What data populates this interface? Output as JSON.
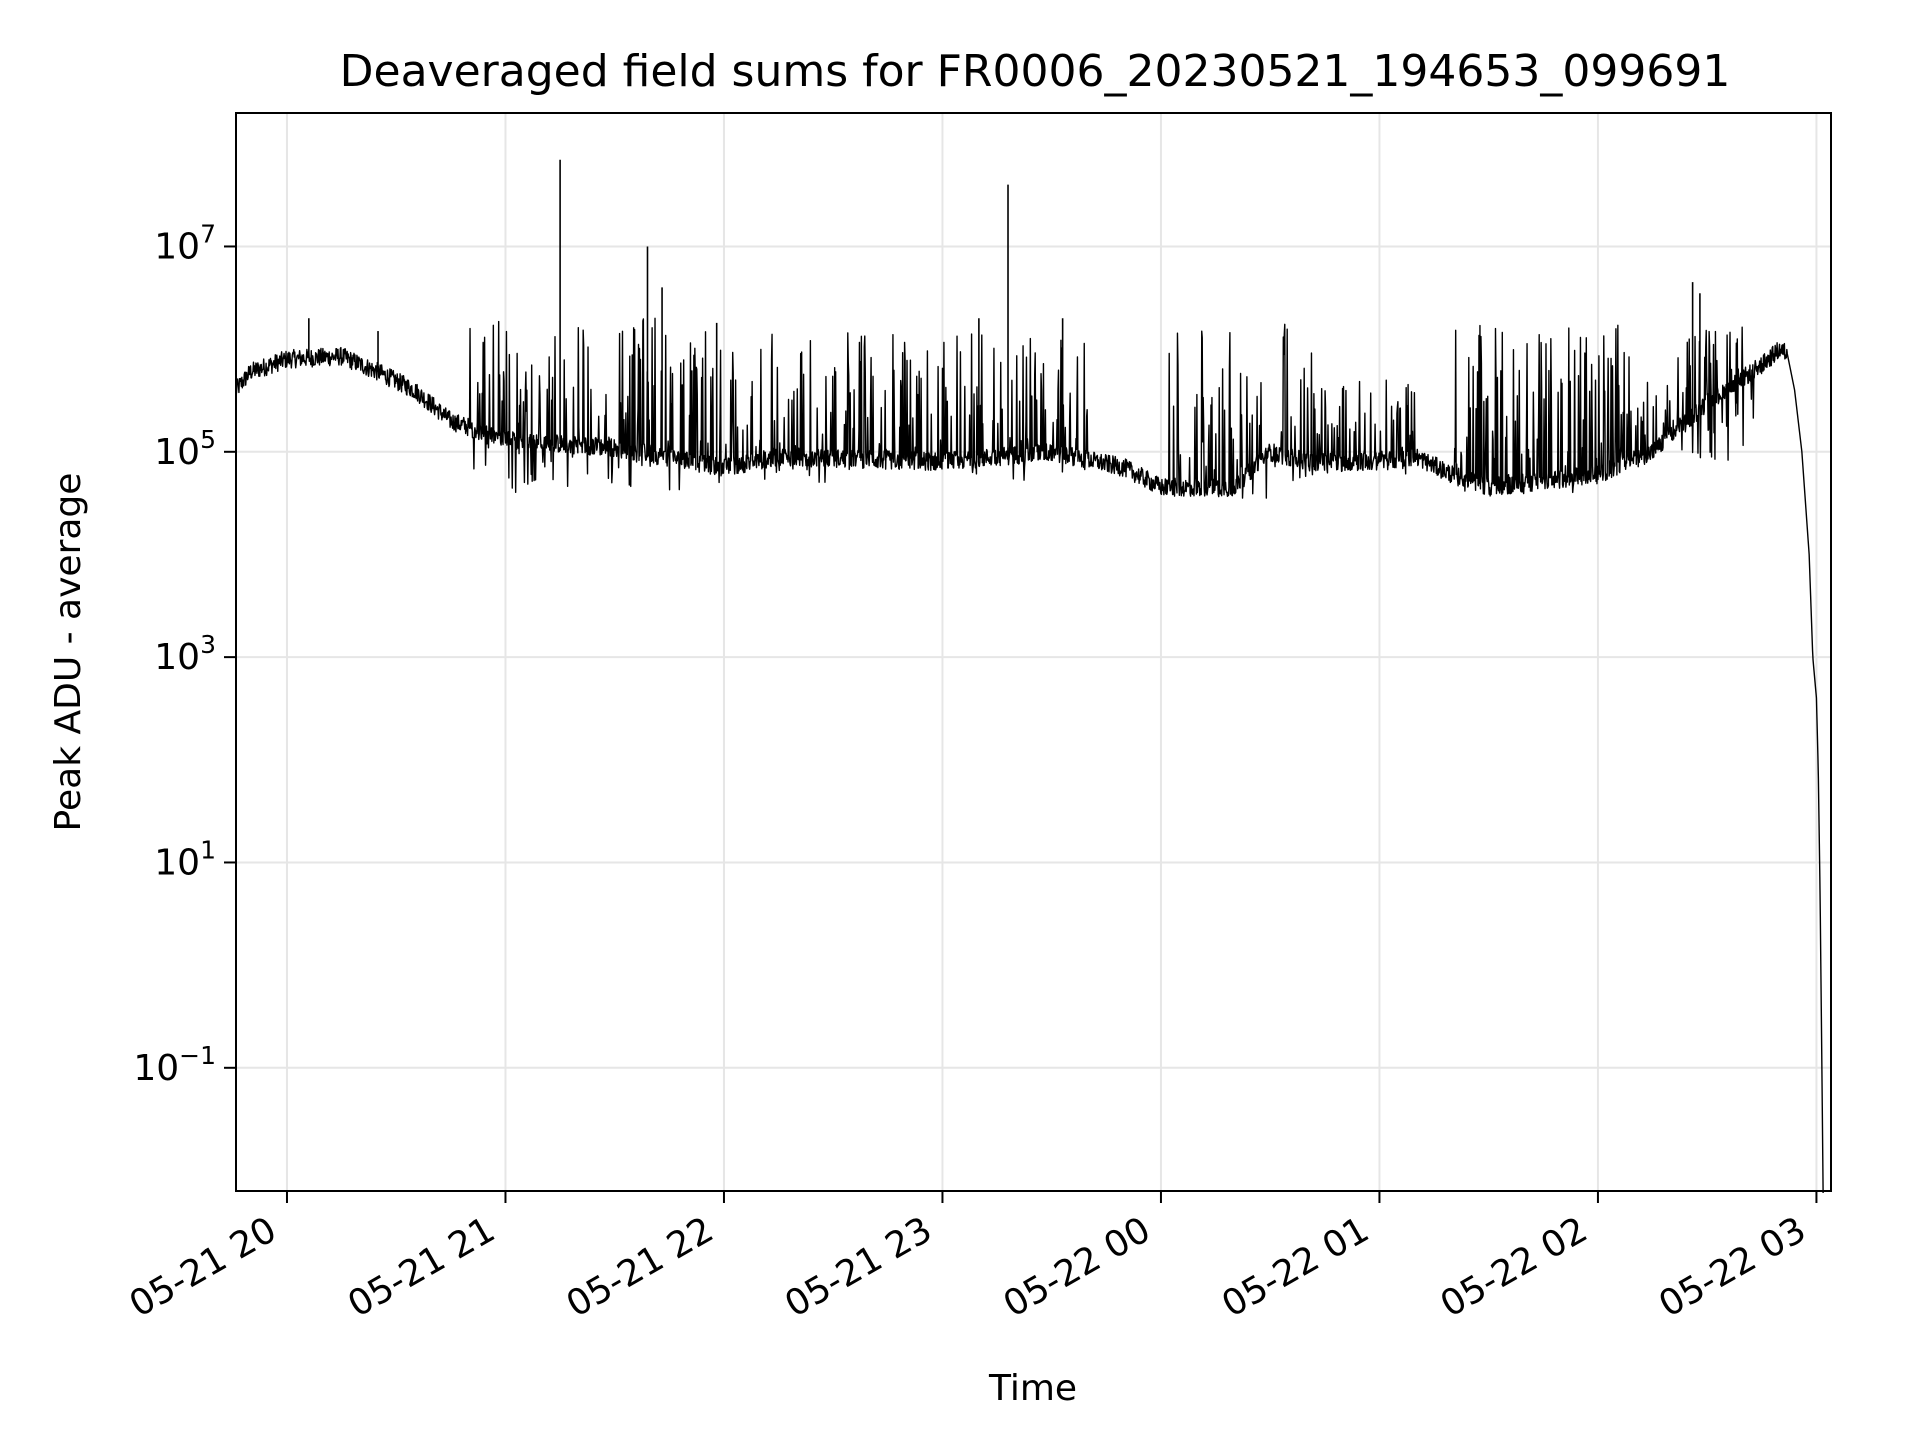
{
  "chart_data": {
    "type": "line",
    "title": "Deaveraged field sums for FR0006_20230521_194653_099691",
    "xlabel": "Time",
    "ylabel": "Peak ADU - average",
    "yscale": "log",
    "grid": true,
    "line_color": "#000000",
    "grid_color": "#e6e6e6",
    "xlim": [
      "2023-05-21 19:46",
      "2023-05-22 03:04"
    ],
    "ylim_exp": [
      -2.2,
      8.3
    ],
    "x_ticks": [
      {
        "t": "2023-05-21 20:00",
        "label": "05-21 20"
      },
      {
        "t": "2023-05-21 21:00",
        "label": "05-21 21"
      },
      {
        "t": "2023-05-21 22:00",
        "label": "05-21 22"
      },
      {
        "t": "2023-05-21 23:00",
        "label": "05-21 23"
      },
      {
        "t": "2023-05-22 00:00",
        "label": "05-22 00"
      },
      {
        "t": "2023-05-22 01:00",
        "label": "05-22 01"
      },
      {
        "t": "2023-05-22 02:00",
        "label": "05-22 02"
      },
      {
        "t": "2023-05-22 03:00",
        "label": "05-22 03"
      }
    ],
    "y_ticks": [
      {
        "exp": -1,
        "base": "10",
        "sup": "−1"
      },
      {
        "exp": 1,
        "base": "10",
        "sup": "1"
      },
      {
        "exp": 3,
        "base": "10",
        "sup": "3"
      },
      {
        "exp": 5,
        "base": "10",
        "sup": "5"
      },
      {
        "exp": 7,
        "base": "10",
        "sup": "7"
      }
    ],
    "baseline": [
      [
        "2023-05-21 19:46",
        400000
      ],
      [
        "2023-05-21 19:50",
        600000
      ],
      [
        "2023-05-21 20:00",
        800000
      ],
      [
        "2023-05-21 20:15",
        850000
      ],
      [
        "2023-05-21 20:25",
        600000
      ],
      [
        "2023-05-21 20:35",
        400000
      ],
      [
        "2023-05-21 20:45",
        200000
      ],
      [
        "2023-05-21 21:00",
        130000
      ],
      [
        "2023-05-21 21:30",
        110000
      ],
      [
        "2023-05-21 22:00",
        70000
      ],
      [
        "2023-05-21 22:15",
        90000
      ],
      [
        "2023-05-21 23:00",
        80000
      ],
      [
        "2023-05-21 23:30",
        100000
      ],
      [
        "2023-05-21 23:50",
        70000
      ],
      [
        "2023-05-22 00:00",
        45000
      ],
      [
        "2023-05-22 00:20",
        45000
      ],
      [
        "2023-05-22 00:30",
        100000
      ],
      [
        "2023-05-22 00:40",
        80000
      ],
      [
        "2023-05-22 01:00",
        80000
      ],
      [
        "2023-05-22 01:10",
        90000
      ],
      [
        "2023-05-22 01:20",
        60000
      ],
      [
        "2023-05-22 01:30",
        45000
      ],
      [
        "2023-05-22 02:00",
        60000
      ],
      [
        "2023-05-22 02:15",
        100000
      ],
      [
        "2023-05-22 02:30",
        300000
      ],
      [
        "2023-05-22 02:45",
        700000
      ],
      [
        "2023-05-22 02:50",
        1000000
      ],
      [
        "2023-05-22 02:52",
        900000
      ],
      [
        "2023-05-22 02:54",
        400000
      ],
      [
        "2023-05-22 02:56",
        100000
      ],
      [
        "2023-05-22 02:58",
        10000
      ],
      [
        "2023-05-22 02:59",
        1000
      ],
      [
        "2023-05-22 03:00",
        400
      ],
      [
        "2023-05-22 03:00:30",
        80
      ],
      [
        "2023-05-22 03:01",
        5
      ],
      [
        "2023-05-22 03:01:30",
        0.1
      ],
      [
        "2023-05-22 03:01:50",
        0.006
      ]
    ],
    "noise_regions": [
      {
        "start": "2023-05-21 20:50",
        "end": "2023-05-21 21:50",
        "low": 40000,
        "high": 2000000
      },
      {
        "start": "2023-05-21 21:50",
        "end": "2023-05-21 23:40",
        "low": 50000,
        "high": 1500000
      },
      {
        "start": "2023-05-22 00:02",
        "end": "2023-05-22 00:42",
        "low": 35000,
        "high": 1800000
      },
      {
        "start": "2023-05-22 00:42",
        "end": "2023-05-22 01:10",
        "low": 60000,
        "high": 500000
      },
      {
        "start": "2023-05-22 01:20",
        "end": "2023-05-22 02:00",
        "low": 35000,
        "high": 1700000
      },
      {
        "start": "2023-05-22 02:00",
        "end": "2023-05-22 02:45",
        "low": 80000,
        "high": 1800000
      }
    ],
    "spikes": [
      [
        "2023-05-21 20:06",
        2000000
      ],
      [
        "2023-05-21 20:25",
        1500000
      ],
      [
        "2023-05-21 21:15",
        70000000
      ],
      [
        "2023-05-21 21:39",
        10000000
      ],
      [
        "2023-05-21 21:43",
        4000000
      ],
      [
        "2023-05-21 21:58",
        1800000
      ],
      [
        "2023-05-21 23:10",
        2000000
      ],
      [
        "2023-05-21 23:18",
        40000000
      ],
      [
        "2023-05-21 23:33",
        2000000
      ],
      [
        "2023-05-22 02:26",
        4500000
      ],
      [
        "2023-05-22 02:28",
        3500000
      ]
    ]
  }
}
